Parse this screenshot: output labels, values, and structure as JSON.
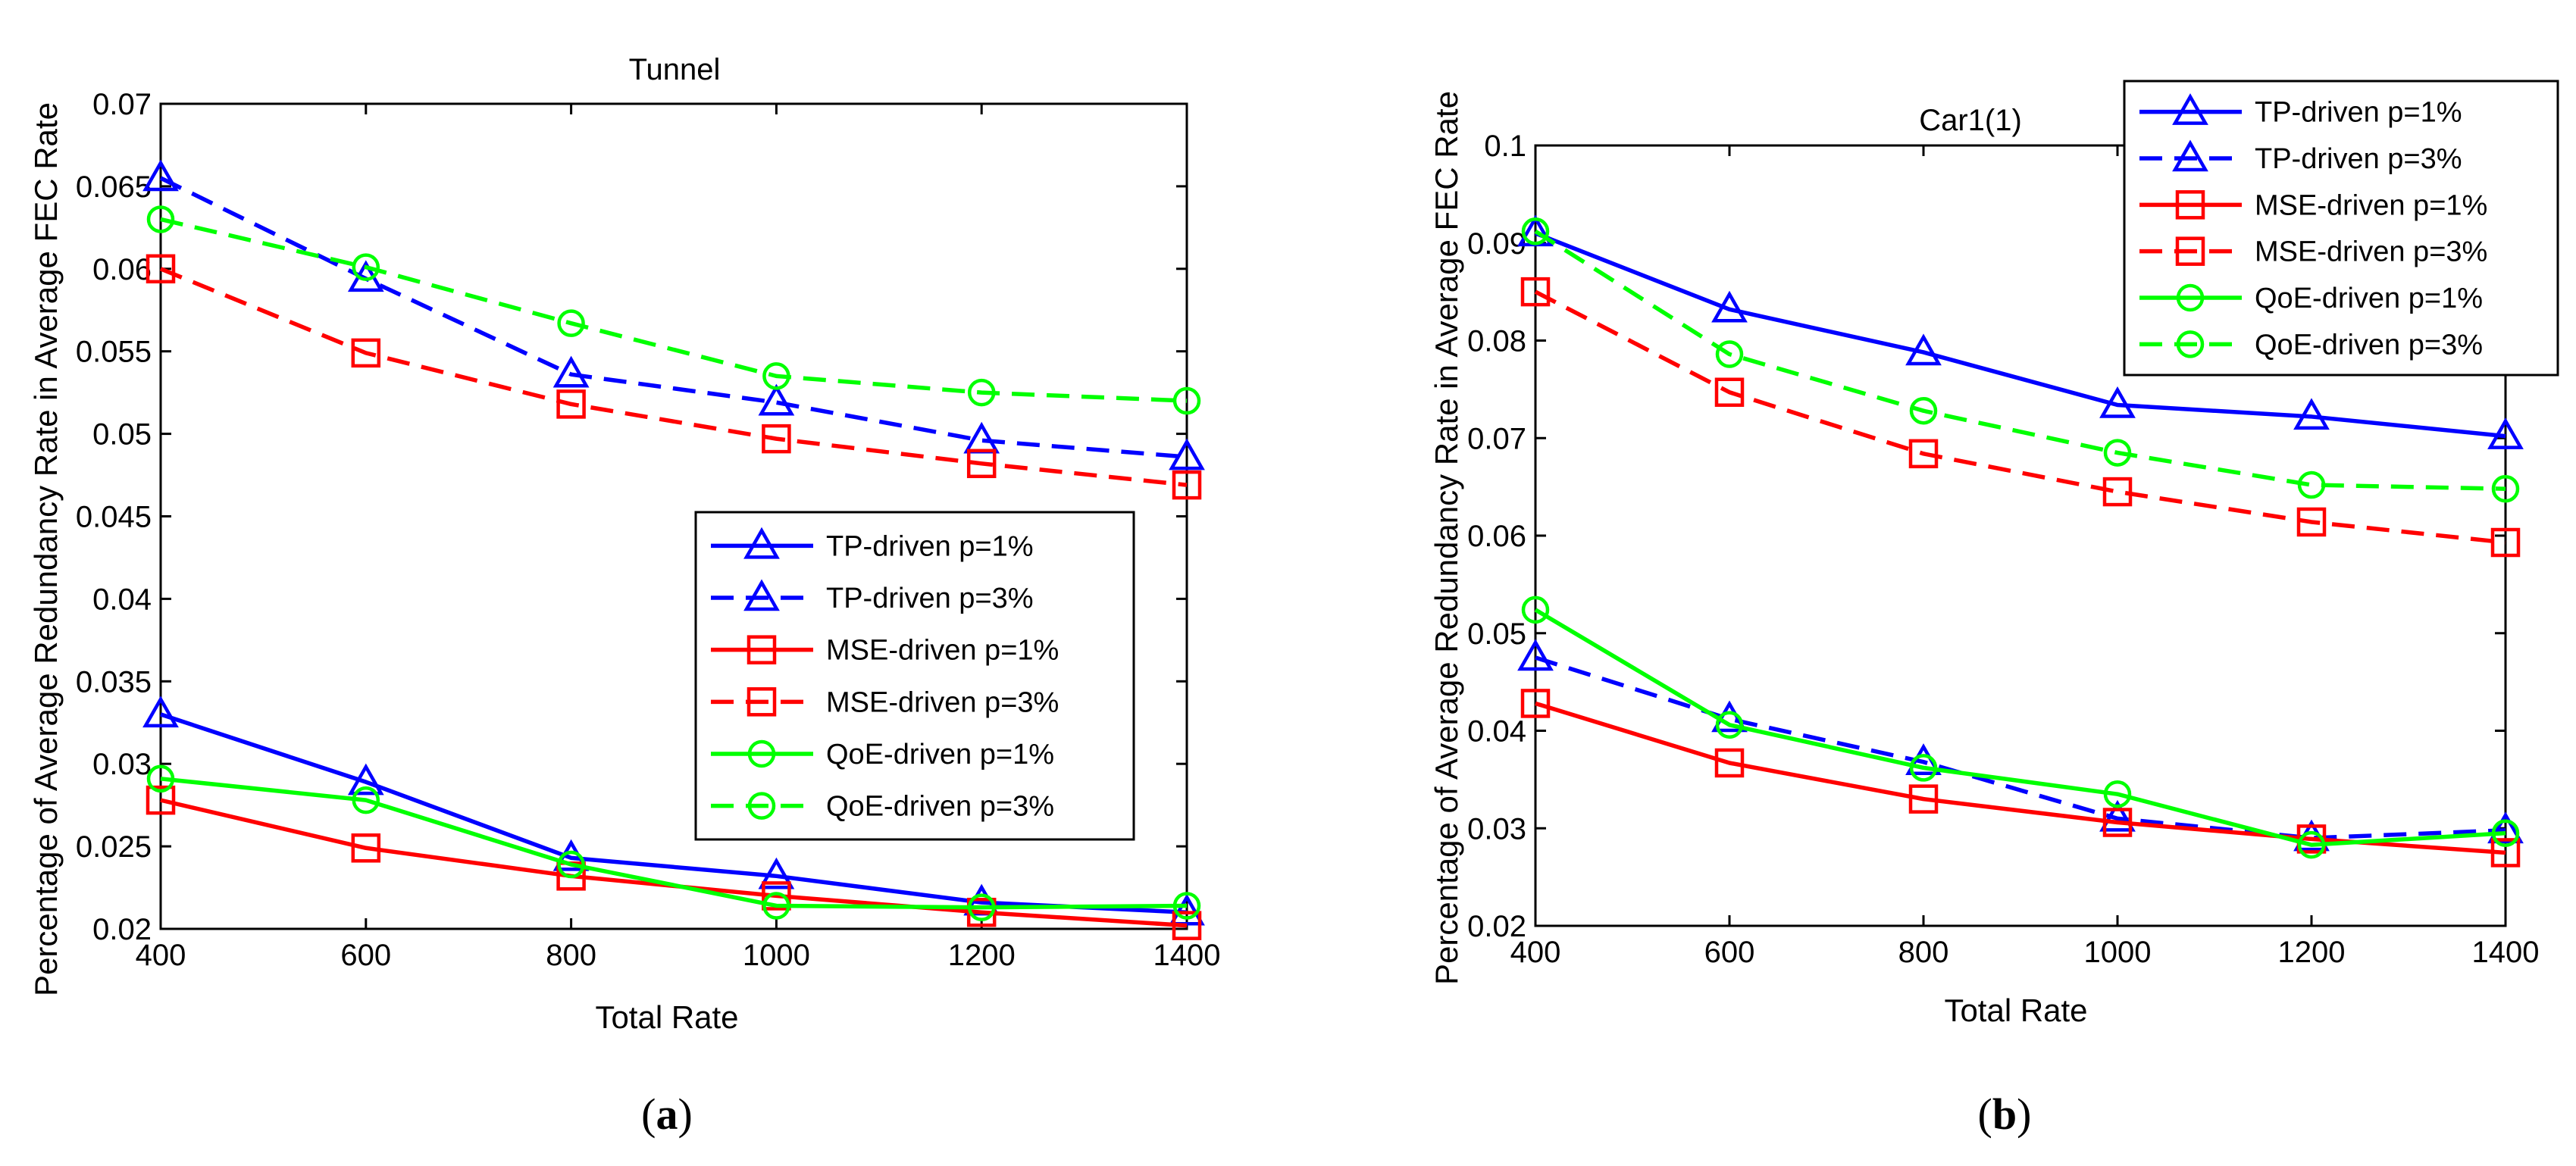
{
  "chart_data": [
    {
      "type": "line",
      "title": "Tunnel",
      "xlabel": "Total Rate",
      "ylabel": "Percentage of Average Redundancy Rate in Average FEC Rate",
      "caption": "a",
      "x": [
        400,
        600,
        800,
        1000,
        1200,
        1400
      ],
      "xlim": [
        400,
        1400
      ],
      "ylim": [
        0.02,
        0.07
      ],
      "xticks": [
        "400",
        "600",
        "800",
        "1000",
        "1200",
        "1400"
      ],
      "yticks": [
        "0.02",
        "0.025",
        "0.03",
        "0.035",
        "0.04",
        "0.045",
        "0.05",
        "0.055",
        "0.06",
        "0.065",
        "0.07"
      ],
      "legend_position": "center-right",
      "series": [
        {
          "name": "TP-driven p=1%",
          "color": "#0000ff",
          "dash": "solid",
          "marker": "triangle",
          "values": [
            0.033,
            0.0289,
            0.0243,
            0.0232,
            0.0216,
            0.021
          ]
        },
        {
          "name": "TP-driven p=3%",
          "color": "#0000ff",
          "dash": "dashed",
          "marker": "triangle",
          "values": [
            0.0655,
            0.0594,
            0.0536,
            0.0519,
            0.0496,
            0.0486
          ]
        },
        {
          "name": "MSE-driven p=1%",
          "color": "#ff0000",
          "dash": "solid",
          "marker": "square",
          "values": [
            0.0278,
            0.0249,
            0.0232,
            0.022,
            0.021,
            0.0202
          ]
        },
        {
          "name": "MSE-driven p=3%",
          "color": "#ff0000",
          "dash": "dashed",
          "marker": "square",
          "values": [
            0.06,
            0.0549,
            0.0518,
            0.0497,
            0.0482,
            0.0469
          ]
        },
        {
          "name": "QoE-driven p=1%",
          "color": "#00ff00",
          "dash": "solid",
          "marker": "circle",
          "values": [
            0.0291,
            0.0278,
            0.0239,
            0.0214,
            0.0213,
            0.0214
          ]
        },
        {
          "name": "QoE-driven p=3%",
          "color": "#00ff00",
          "dash": "dashed",
          "marker": "circle",
          "values": [
            0.063,
            0.0601,
            0.0567,
            0.0535,
            0.0525,
            0.052
          ]
        }
      ]
    },
    {
      "type": "line",
      "title": "Car1(1)",
      "xlabel": "Total Rate",
      "ylabel": "Percentage of Average Redundancy Rate in Average FEC Rate",
      "caption": "b",
      "x": [
        400,
        600,
        800,
        1000,
        1200,
        1400
      ],
      "xlim": [
        400,
        1400
      ],
      "ylim": [
        0.02,
        0.1
      ],
      "xticks": [
        "400",
        "600",
        "800",
        "1000",
        "1200",
        "1400"
      ],
      "yticks": [
        "0.02",
        "0.03",
        "0.04",
        "0.05",
        "0.06",
        "0.07",
        "0.08",
        "0.09",
        "0.1"
      ],
      "legend_position": "top-right",
      "series": [
        {
          "name": "TP-driven p=1%",
          "color": "#0000ff",
          "dash": "solid",
          "marker": "triangle",
          "values": [
            0.091,
            0.0832,
            0.0788,
            0.0734,
            0.0722,
            0.0702
          ]
        },
        {
          "name": "TP-driven p=3%",
          "color": "#0000ff",
          "dash": "dashed",
          "marker": "triangle",
          "values": [
            0.0475,
            0.0412,
            0.0368,
            0.031,
            0.029,
            0.0298
          ]
        },
        {
          "name": "MSE-driven p=1%",
          "color": "#ff0000",
          "dash": "solid",
          "marker": "square",
          "values": [
            0.0428,
            0.0367,
            0.033,
            0.0306,
            0.0289,
            0.0275
          ]
        },
        {
          "name": "MSE-driven p=3%",
          "color": "#ff0000",
          "dash": "dashed",
          "marker": "square",
          "values": [
            0.085,
            0.0747,
            0.0684,
            0.0645,
            0.0614,
            0.0593
          ]
        },
        {
          "name": "QoE-driven p=1%",
          "color": "#00ff00",
          "dash": "solid",
          "marker": "circle",
          "values": [
            0.0524,
            0.0406,
            0.0362,
            0.0335,
            0.0283,
            0.0295
          ]
        },
        {
          "name": "QoE-driven p=3%",
          "color": "#00ff00",
          "dash": "dashed",
          "marker": "circle",
          "values": [
            0.0912,
            0.0786,
            0.0728,
            0.0685,
            0.0652,
            0.0648
          ]
        }
      ]
    }
  ]
}
